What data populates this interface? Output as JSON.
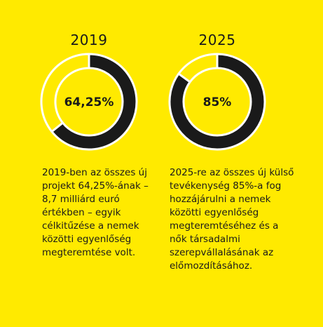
{
  "chart_data": [
    {
      "type": "pie",
      "title": "2019",
      "center_label": "64,25%",
      "values": [
        64.25,
        35.75
      ],
      "colors": [
        "#1a1a1a",
        "#FFEA00"
      ],
      "caption": "2019-ben az összes új projekt 64,25%-ának – 8,7 milliárd euró értékben – egyik célkitűzése a nemek közötti egyenlőség megteremtése volt."
    },
    {
      "type": "pie",
      "title": "2025",
      "center_label": "85%",
      "values": [
        85,
        15
      ],
      "colors": [
        "#1a1a1a",
        "#FFEA00"
      ],
      "caption": "2025-re az összes új külső tevékenység 85%-a fog hozzájárulni a nemek közötti egyenlőség megteremtéséhez és a nők társadalmi szerepvállalásának az előmozdításához."
    }
  ]
}
